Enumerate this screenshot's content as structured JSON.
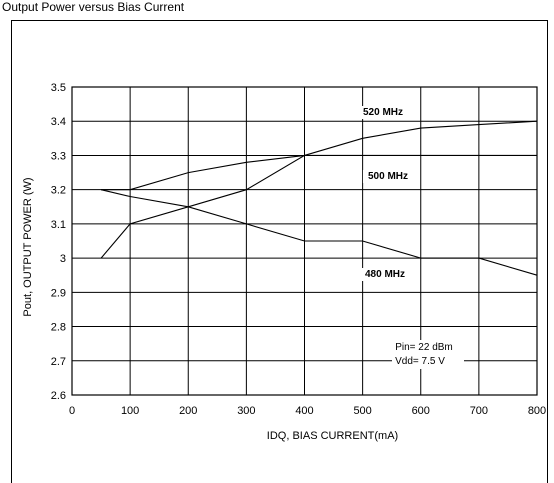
{
  "page_title": "Output Power versus Bias Current",
  "chart_data": {
    "type": "line",
    "title": "",
    "xlabel": "IDQ, BIAS CURRENT(mA)",
    "ylabel": "Pout, OUTPUT POWER (W)",
    "xlim": [
      0,
      800
    ],
    "ylim": [
      2.6,
      3.5
    ],
    "x_ticks": [
      0,
      100,
      200,
      300,
      400,
      500,
      600,
      700,
      800
    ],
    "y_ticks": [
      2.6,
      2.7,
      2.8,
      2.9,
      3.0,
      3.1,
      3.2,
      3.3,
      3.4,
      3.5
    ],
    "x_tick_labels": [
      "0",
      "100",
      "200",
      "300",
      "400",
      "500",
      "600",
      "700",
      "800"
    ],
    "y_tick_labels": [
      "2.6",
      "2.7",
      "2.8",
      "2.9",
      "3",
      "3.1",
      "3.2",
      "3.3",
      "3.4",
      "3.5"
    ],
    "grid": true,
    "series": [
      {
        "name": "520 MHz",
        "x": [
          50,
          100,
          200,
          300,
          400,
          500,
          600,
          700,
          800
        ],
        "y": [
          3.2,
          3.2,
          3.25,
          3.28,
          3.3,
          3.35,
          3.38,
          3.39,
          3.4
        ]
      },
      {
        "name": "500 MHz",
        "x": [
          50,
          100,
          200,
          300,
          400,
          500,
          600,
          700,
          800
        ],
        "y": [
          3.0,
          3.1,
          3.15,
          3.2,
          3.3,
          3.3,
          3.3,
          3.3,
          3.3
        ]
      },
      {
        "name": "480 MHz",
        "x": [
          50,
          100,
          200,
          300,
          400,
          500,
          600,
          700,
          800
        ],
        "y": [
          3.2,
          3.18,
          3.15,
          3.1,
          3.05,
          3.05,
          3.0,
          3.0,
          2.95
        ]
      }
    ],
    "annotations": [
      "Pin= 22 dBm",
      "Vdd= 7.5 V"
    ]
  }
}
